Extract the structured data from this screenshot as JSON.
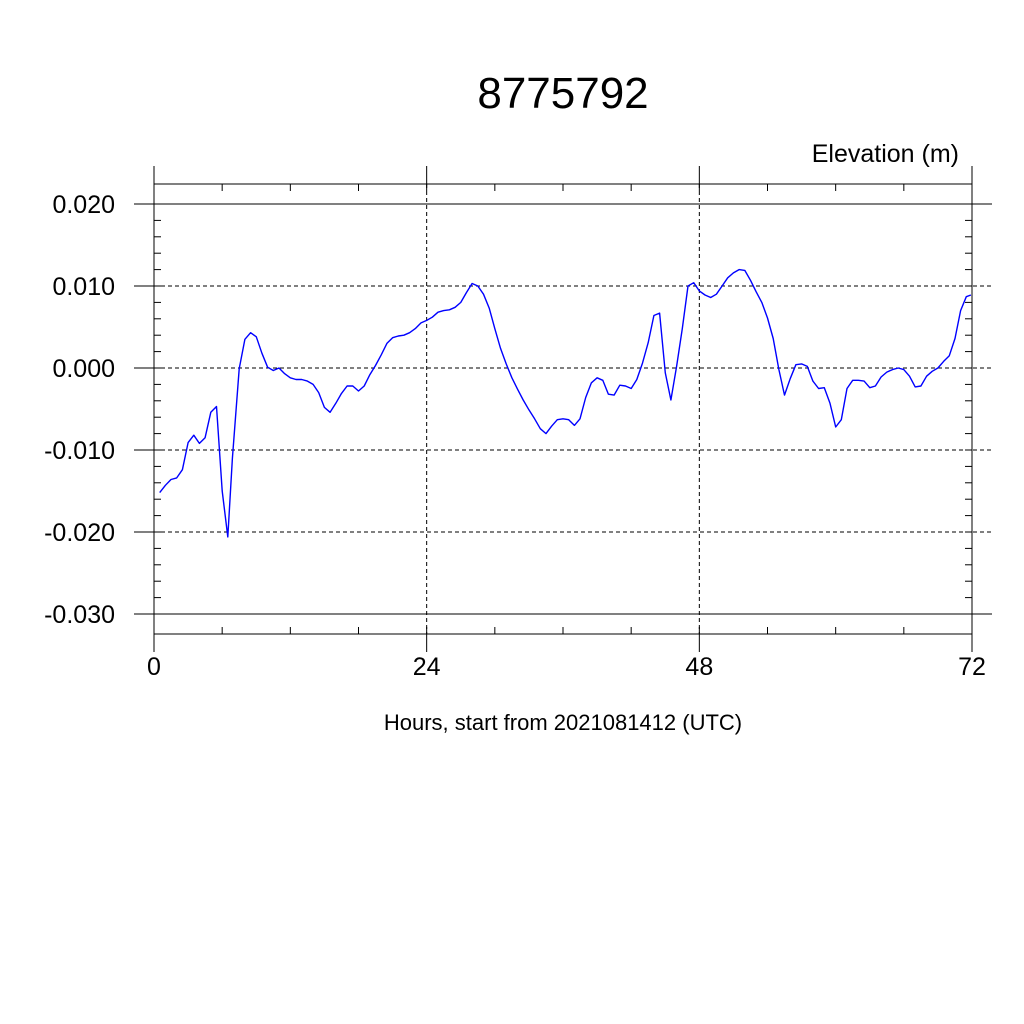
{
  "chart_data": {
    "type": "line",
    "title": "8775792",
    "subtitle": "Elevation (m)",
    "xlabel": "Hours, start from 2021081412 (UTC)",
    "ylabel": "",
    "xlim": [
      0,
      72
    ],
    "ylim": [
      -0.03,
      0.02
    ],
    "x_ticks": [
      0,
      24,
      48,
      72
    ],
    "x_tick_labels": [
      "0",
      "24",
      "48",
      "72"
    ],
    "y_ticks": [
      -0.03,
      -0.02,
      -0.01,
      0.0,
      0.01,
      0.02
    ],
    "y_tick_labels": [
      "-0.030",
      "-0.020",
      "-0.010",
      "0.000",
      "0.010",
      "0.020"
    ],
    "grid": true,
    "series_color": "#0000ff",
    "series": [
      {
        "x": [
          0.5,
          1.0,
          1.5,
          2.0,
          2.5,
          3.0,
          3.5,
          4.0,
          4.5,
          5.0,
          5.5,
          6.0,
          6.5,
          6.9,
          7.5,
          8.0,
          8.5,
          9.0,
          9.5,
          10.0,
          10.5,
          11.0,
          11.5,
          12.0,
          12.5,
          13.0,
          13.5,
          14.0,
          14.5,
          15.0,
          15.5,
          16.0,
          16.5,
          17.0,
          17.5,
          18.0,
          18.5,
          19.0,
          19.5,
          20.0,
          20.5,
          21.0,
          21.5,
          22.0,
          22.5,
          23.0,
          23.5,
          24.0,
          24.5,
          25.0,
          25.5,
          26.0,
          26.5,
          27.0,
          27.5,
          28.0,
          28.5,
          29.0,
          29.5,
          30.0,
          30.5,
          31.0,
          31.5,
          32.0,
          32.5,
          33.0,
          33.5,
          34.0,
          34.5,
          35.0,
          35.5,
          36.0,
          36.5,
          37.0,
          37.5,
          38.0,
          38.5,
          39.0,
          39.5,
          40.0,
          40.5,
          41.0,
          41.5,
          42.0,
          42.5,
          43.0,
          43.5,
          44.0,
          44.5,
          45.0,
          45.5,
          46.0,
          46.5,
          47.0,
          47.5,
          48.0,
          48.5,
          49.0,
          49.5,
          50.0,
          50.5,
          51.0,
          51.5,
          52.0,
          52.5,
          53.0,
          53.5,
          54.0,
          54.5,
          55.0,
          55.5,
          56.0,
          56.5,
          57.0,
          57.5,
          58.0,
          58.5,
          59.0,
          59.5,
          60.0,
          60.5,
          61.0,
          61.5,
          62.0,
          62.5,
          63.0,
          63.5,
          64.0,
          64.5,
          65.0,
          65.5,
          66.0,
          66.5,
          67.0,
          67.5,
          68.0,
          68.5,
          69.0,
          69.5,
          70.0,
          70.5,
          71.0,
          71.5,
          71.9
        ],
        "y": [
          -0.0152,
          -0.0143,
          -0.0136,
          -0.0134,
          -0.0124,
          -0.0091,
          -0.0082,
          -0.0092,
          -0.0085,
          -0.0054,
          -0.0047,
          -0.015,
          -0.0206,
          -0.011,
          -0.0001,
          0.0035,
          0.0043,
          0.0038,
          0.0018,
          0.0001,
          -0.0003,
          0.0,
          -0.0007,
          -0.0012,
          -0.0014,
          -0.0014,
          -0.0016,
          -0.002,
          -0.003,
          -0.0048,
          -0.0054,
          -0.0043,
          -0.0031,
          -0.0022,
          -0.0022,
          -0.0028,
          -0.0022,
          -0.0008,
          0.0003,
          0.0016,
          0.003,
          0.0037,
          0.0039,
          0.004,
          0.0043,
          0.0048,
          0.0055,
          0.0058,
          0.0062,
          0.0068,
          0.007,
          0.0071,
          0.0074,
          0.008,
          0.0092,
          0.0103,
          0.01,
          0.009,
          0.0073,
          0.0048,
          0.0024,
          0.0005,
          -0.0012,
          -0.0026,
          -0.0039,
          -0.0051,
          -0.0062,
          -0.0074,
          -0.008,
          -0.0071,
          -0.0063,
          -0.0062,
          -0.0063,
          -0.007,
          -0.0062,
          -0.0036,
          -0.0018,
          -0.0012,
          -0.0015,
          -0.0032,
          -0.0033,
          -0.0021,
          -0.0022,
          -0.0025,
          -0.0014,
          0.0006,
          0.0031,
          0.0064,
          0.0067,
          -0.0006,
          -0.0039,
          0.0002,
          0.0048,
          0.01,
          0.0104,
          0.0094,
          0.0089,
          0.0086,
          0.009,
          0.01,
          0.011,
          0.0116,
          0.012,
          0.0119,
          0.0107,
          0.0093,
          0.008,
          0.0061,
          0.0036,
          -0.0002,
          -0.0033,
          -0.0013,
          0.0004,
          0.0005,
          0.0002,
          -0.0016,
          -0.0025,
          -0.0024,
          -0.0043,
          -0.0072,
          -0.0063,
          -0.0025,
          -0.0015,
          -0.0015,
          -0.0016,
          -0.0024,
          -0.0022,
          -0.0011,
          -0.0005,
          -0.0002,
          0.0,
          -0.0002,
          -0.001,
          -0.0023,
          -0.0022,
          -0.001,
          -0.0004,
          0.0,
          0.0008,
          0.0015,
          0.0036,
          0.007,
          0.0087,
          0.0089
        ]
      }
    ]
  }
}
